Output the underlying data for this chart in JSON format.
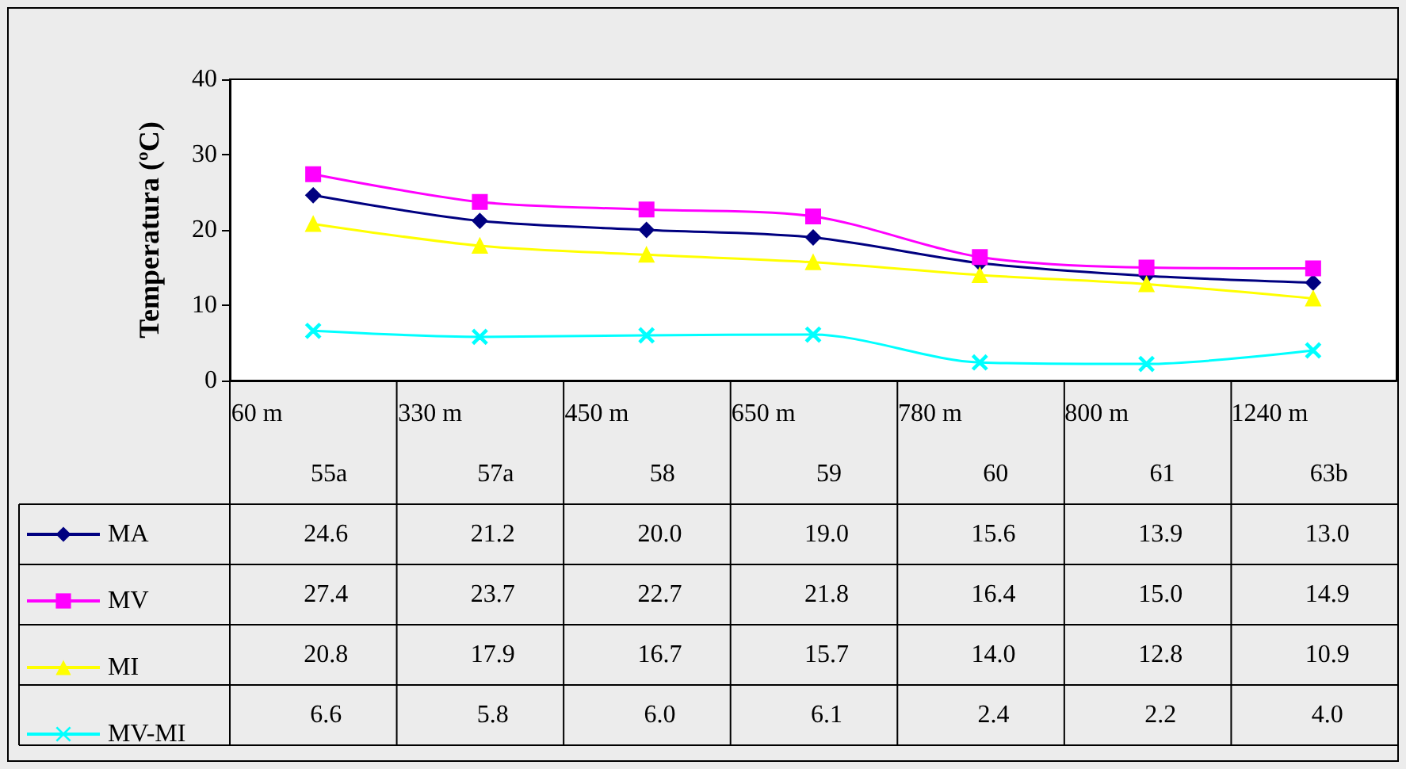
{
  "chart_data": {
    "type": "line",
    "ylabel": "Temperatura (ºC)",
    "categories": [
      "60 m\n55a",
      "330 m\n57a",
      "450 m\n58",
      "650 m\n59",
      "780 m\n60",
      "800 m\n61",
      "1240 m\n63b"
    ],
    "series": [
      {
        "name": "MA",
        "color": "#000080",
        "marker": "diamond",
        "values": [
          24.6,
          21.2,
          20.0,
          19.0,
          15.6,
          13.9,
          13.0
        ],
        "value_labels": [
          "24.6",
          "21.2",
          "20.0",
          "19.0",
          "15.6",
          "13.9",
          "13.0"
        ]
      },
      {
        "name": "MV",
        "color": "#ff00ff",
        "marker": "square",
        "values": [
          27.4,
          23.7,
          22.7,
          21.8,
          16.4,
          15.0,
          14.9
        ],
        "value_labels": [
          "27.4",
          "23.7",
          "22.7",
          "21.8",
          "16.4",
          "15.0",
          "14.9"
        ]
      },
      {
        "name": "MI",
        "color": "#ffff00",
        "marker": "triangle",
        "values": [
          20.8,
          17.9,
          16.7,
          15.7,
          14.0,
          12.8,
          10.9
        ],
        "value_labels": [
          "20.8",
          "17.9",
          "16.7",
          "15.7",
          "14.0",
          "12.8",
          "10.9"
        ]
      },
      {
        "name": "MV-MI",
        "color": "#00ffff",
        "marker": "cross",
        "values": [
          6.6,
          5.8,
          6.0,
          6.1,
          2.4,
          2.2,
          4.0
        ],
        "value_labels": [
          "6.6",
          "5.8",
          "6.0",
          "6.1",
          "2.4",
          "2.2",
          "4.0"
        ]
      }
    ],
    "ylim": [
      0,
      40
    ],
    "yticks": [
      0,
      10,
      20,
      30,
      40
    ],
    "legend": "bottom left"
  }
}
